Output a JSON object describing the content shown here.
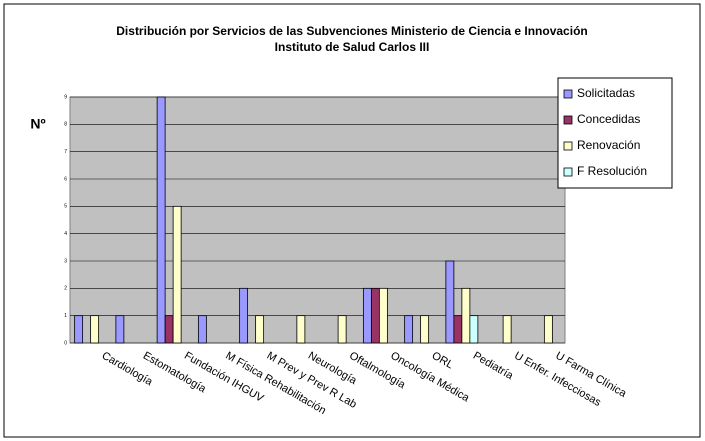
{
  "chart_data": {
    "type": "bar",
    "title": "Distribución por Servicios de las Subvenciones Ministerio de Ciencia e Innovación",
    "subtitle": "Instituto de Salud Carlos III",
    "y_label": "Nº",
    "categories": [
      "Cardiología",
      "Estomatología",
      "Fundación IHGUV",
      "M Física Rehabilitación",
      "M Prev y Prev R Lab",
      "Neurología",
      "Oftalmología",
      "Oncología Médica",
      "ORL",
      "Pediatría",
      "U Enfer. Infecciosas",
      "U Farma Clínica"
    ],
    "series": [
      {
        "name": "Solicitadas",
        "color": "#9999ff",
        "values": [
          1,
          1,
          9,
          1,
          2,
          0,
          0,
          2,
          1,
          3,
          0,
          0
        ]
      },
      {
        "name": "Concedidas",
        "color": "#993366",
        "values": [
          0,
          0,
          1,
          0,
          0,
          0,
          0,
          2,
          0,
          1,
          0,
          0
        ]
      },
      {
        "name": "Renovación",
        "color": "#ffffcc",
        "values": [
          1,
          0,
          5,
          0,
          1,
          1,
          1,
          2,
          1,
          2,
          1,
          1
        ]
      },
      {
        "name": "F Resolución",
        "color": "#ccffff",
        "values": [
          0,
          0,
          0,
          0,
          0,
          0,
          0,
          0,
          0,
          1,
          0,
          0
        ]
      }
    ],
    "ylim": [
      0,
      9
    ],
    "yticks": [
      0,
      1,
      2,
      3,
      4,
      5,
      6,
      7,
      8,
      9
    ],
    "grid": true,
    "legend": "right"
  }
}
